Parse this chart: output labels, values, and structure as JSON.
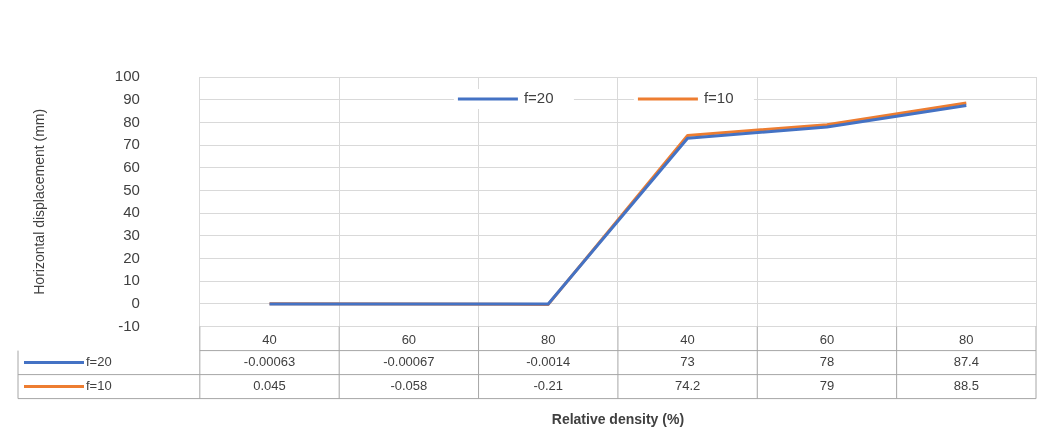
{
  "chart_data": {
    "type": "line",
    "xlabel": "Relative density (%)",
    "ylabel": "Horizontal displacement (mm)",
    "categories": [
      "40",
      "60",
      "80",
      "40",
      "60",
      "80"
    ],
    "series": [
      {
        "name": "f=20",
        "color": "#4472c4",
        "values": [
          -0.00063,
          -0.00067,
          -0.0014,
          73,
          78,
          87.4
        ]
      },
      {
        "name": "f=10",
        "color": "#ed7d31",
        "values": [
          0.045,
          -0.058,
          -0.21,
          74.2,
          79,
          88.5
        ]
      }
    ],
    "ylim": [
      -10,
      100
    ],
    "yticks": [
      -10,
      0,
      10,
      20,
      30,
      40,
      50,
      60,
      70,
      80,
      90,
      100
    ],
    "grid": "y",
    "legend": "top",
    "marker": "none",
    "line_style": "solid",
    "data_labels": true
  }
}
